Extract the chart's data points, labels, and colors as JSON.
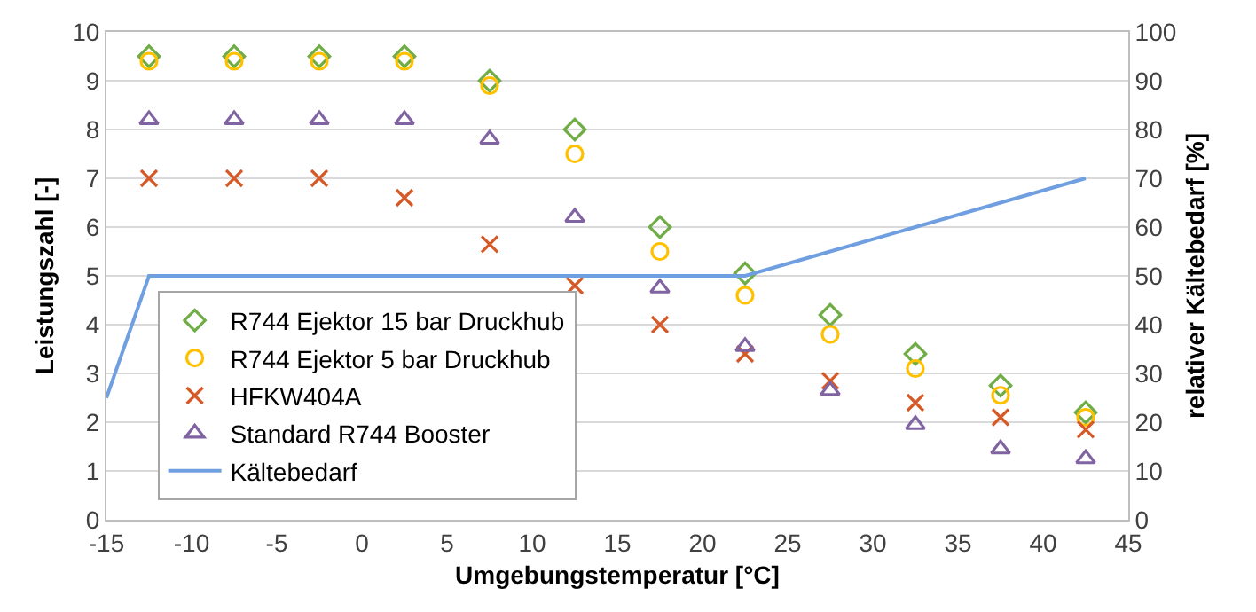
{
  "chart_data": {
    "type": "scatter",
    "xlabel": "Umgebungstemperatur [°C]",
    "ylabel": "Leistungszahl [-]",
    "y2label": "relativer Kältebedarf [%]",
    "x": [
      -12.5,
      -7.5,
      -2.5,
      2.5,
      7.5,
      12.5,
      17.5,
      22.5,
      27.5,
      32.5,
      37.5,
      42.5
    ],
    "series": [
      {
        "name": "R744 Ejektor 15 bar Druckhub",
        "color": "#70ad47",
        "marker": "diamond",
        "values": [
          9.5,
          9.5,
          9.5,
          9.5,
          9.0,
          8.0,
          6.0,
          5.05,
          4.2,
          3.4,
          2.75,
          2.2
        ]
      },
      {
        "name": "R744 Ejektor 5 bar Druckhub",
        "color": "#ffc000",
        "marker": "circle",
        "values": [
          9.4,
          9.4,
          9.4,
          9.4,
          8.9,
          7.5,
          5.5,
          4.6,
          3.8,
          3.1,
          2.55,
          2.1
        ]
      },
      {
        "name": "HFKW404A",
        "color": "#d65a28",
        "marker": "cross",
        "values": [
          7.0,
          7.0,
          7.0,
          6.6,
          5.65,
          4.8,
          4.0,
          3.4,
          2.85,
          2.4,
          2.1,
          1.85
        ]
      },
      {
        "name": "Standard R744 Booster",
        "color": "#8064a2",
        "marker": "triangle",
        "values": [
          8.2,
          8.2,
          8.2,
          8.2,
          7.8,
          6.2,
          4.75,
          3.55,
          2.65,
          1.95,
          1.45,
          1.25
        ]
      },
      {
        "name": "Kältebedarf",
        "color": "#6f9fe0",
        "type": "line",
        "axis": "y2",
        "marker": "none",
        "x": [
          -15,
          -12.5,
          -7.5,
          -2.5,
          2.5,
          7.5,
          12.5,
          17.5,
          22.5,
          27.5,
          32.5,
          37.5,
          42.5
        ],
        "values": [
          25,
          50,
          50,
          50,
          50,
          50,
          50,
          50,
          50,
          55,
          60,
          65,
          70
        ]
      }
    ],
    "xlim": [
      -15,
      45
    ],
    "xticks": [
      -15,
      -10,
      -5,
      0,
      5,
      10,
      15,
      20,
      25,
      30,
      35,
      40,
      45
    ],
    "ylim": [
      0,
      10
    ],
    "yticks": [
      0,
      1,
      2,
      3,
      4,
      5,
      6,
      7,
      8,
      9,
      10
    ],
    "y2lim": [
      0,
      100
    ],
    "y2ticks": [
      0,
      10,
      20,
      30,
      40,
      50,
      60,
      70,
      80,
      90,
      100
    ],
    "grid": "y",
    "legend": "bottom left"
  }
}
